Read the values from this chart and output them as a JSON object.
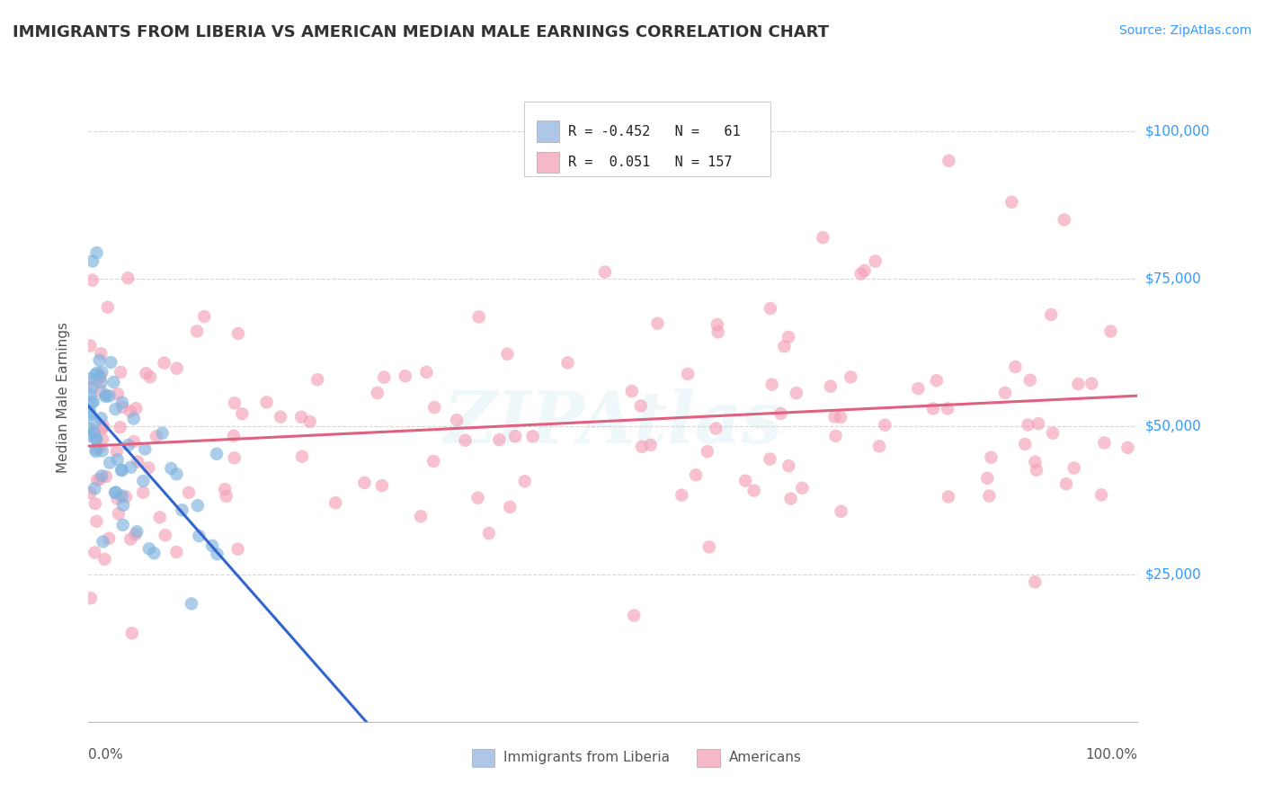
{
  "title": "IMMIGRANTS FROM LIBERIA VS AMERICAN MEDIAN MALE EARNINGS CORRELATION CHART",
  "source": "Source: ZipAtlas.com",
  "ylabel": "Median Male Earnings",
  "yticks": [
    0,
    25000,
    50000,
    75000,
    100000
  ],
  "ytick_labels": [
    "",
    "$25,000",
    "$50,000",
    "$75,000",
    "$100,000"
  ],
  "legend1_color": "#aec6e8",
  "legend2_color": "#f4b8c8",
  "legend1_label": "Immigrants from Liberia",
  "legend2_label": "Americans",
  "r1": -0.452,
  "n1": 61,
  "r2": 0.051,
  "n2": 157,
  "watermark": "ZIPAtlas",
  "bg_color": "#ffffff",
  "grid_color": "#cccccc",
  "title_color": "#333333",
  "blue_scatter_color": "#7eb3e0",
  "pink_scatter_color": "#f4a0b8",
  "blue_line_color": "#3366cc",
  "pink_line_color": "#e06080",
  "right_label_color": "#3399ff",
  "xmin": 0.0,
  "xmax": 1.0,
  "ymin": 0,
  "ymax": 110000
}
